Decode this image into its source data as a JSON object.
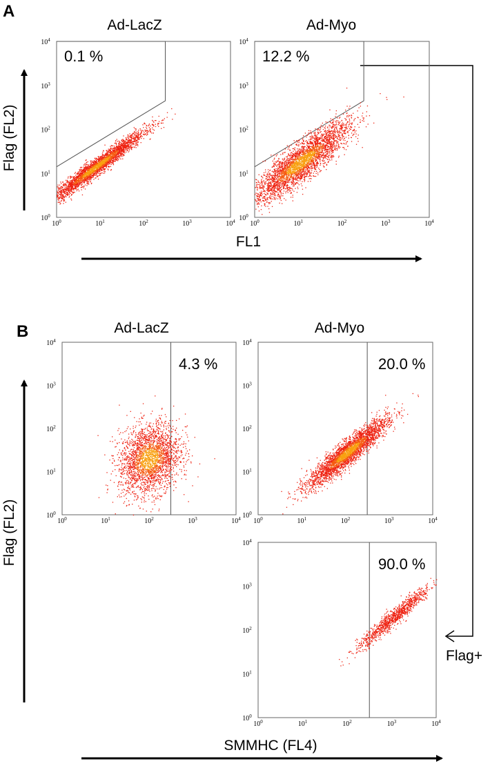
{
  "panels": {
    "a": "A",
    "b": "B"
  },
  "labels": {
    "ylabel_a": "Flag (FL2)",
    "xlabel_a": "FL1",
    "ylabel_b": "Flag (FL2)",
    "xlabel_b": "SMMHC (FL4)",
    "flag_plus": "Flag+"
  },
  "colors": {
    "dots": "#ee2211",
    "core": "#f8a010",
    "gate": "#555555"
  },
  "chart_data": [
    {
      "id": "a-lacz",
      "type": "scatter",
      "title": "Ad-LacZ",
      "gate_pct": "0.1 %",
      "x_ticks": [
        "10",
        "10",
        "10",
        "10",
        "10"
      ],
      "x_exps": [
        "0",
        "1",
        "2",
        "3",
        "4"
      ],
      "y_ticks": [
        "10",
        "10",
        "10",
        "10",
        "10"
      ],
      "y_exps": [
        "0",
        "1",
        "2",
        "3",
        "4"
      ],
      "xlim_log10": [
        0,
        4
      ],
      "ylim_log10": [
        0,
        4
      ],
      "gate": {
        "kind": "polygon",
        "points_log10": [
          [
            0,
            1.15
          ],
          [
            2.5,
            2.65
          ],
          [
            2.5,
            4
          ],
          [
            0,
            4
          ]
        ]
      },
      "population": {
        "center_log10": [
          0.9,
          1.15
        ],
        "spread_log10": [
          0.55,
          0.1
        ],
        "slope": 0.72,
        "count": 3200,
        "core": true
      }
    },
    {
      "id": "a-myo",
      "type": "scatter",
      "title": "Ad-Myo",
      "gate_pct": "12.2 %",
      "x_ticks": [
        "10",
        "10",
        "10",
        "10",
        "10"
      ],
      "x_exps": [
        "0",
        "1",
        "2",
        "3",
        "4"
      ],
      "y_ticks": [
        "10",
        "10",
        "10",
        "10",
        "10"
      ],
      "y_exps": [
        "0",
        "1",
        "2",
        "3",
        "4"
      ],
      "xlim_log10": [
        0,
        4
      ],
      "ylim_log10": [
        0,
        4
      ],
      "gate": {
        "kind": "polygon",
        "points_log10": [
          [
            0,
            1.15
          ],
          [
            2.5,
            2.65
          ],
          [
            2.5,
            4
          ],
          [
            0,
            4
          ]
        ]
      },
      "population": {
        "center_log10": [
          1.05,
          1.25
        ],
        "spread_log10": [
          0.55,
          0.22
        ],
        "slope": 0.72,
        "count": 3600,
        "core": true
      }
    },
    {
      "id": "b-lacz",
      "type": "scatter",
      "title": "Ad-LacZ",
      "gate_pct": "4.3 %",
      "x_ticks": [
        "10",
        "10",
        "10",
        "10",
        "10"
      ],
      "x_exps": [
        "0",
        "1",
        "2",
        "3",
        "4"
      ],
      "y_ticks": [
        "10",
        "10",
        "10",
        "10",
        "10"
      ],
      "y_exps": [
        "0",
        "1",
        "2",
        "3",
        "4"
      ],
      "xlim_log10": [
        0,
        4
      ],
      "ylim_log10": [
        0,
        4
      ],
      "gate": {
        "kind": "vertical",
        "x_log10": 2.5
      },
      "population": {
        "center_log10": [
          2.0,
          1.3
        ],
        "spread_log10": [
          0.35,
          0.4
        ],
        "slope": 0.25,
        "count": 2600,
        "core": true
      }
    },
    {
      "id": "b-myo",
      "type": "scatter",
      "title": "Ad-Myo",
      "gate_pct": "20.0 %",
      "x_ticks": [
        "10",
        "10",
        "10",
        "10",
        "10"
      ],
      "x_exps": [
        "0",
        "1",
        "2",
        "3",
        "4"
      ],
      "y_ticks": [
        "10",
        "10",
        "10",
        "10",
        "10"
      ],
      "y_exps": [
        "0",
        "1",
        "2",
        "3",
        "4"
      ],
      "xlim_log10": [
        0,
        4
      ],
      "ylim_log10": [
        0,
        4
      ],
      "gate": {
        "kind": "vertical",
        "x_log10": 2.5
      },
      "population": {
        "center_log10": [
          2.05,
          1.45
        ],
        "spread_log10": [
          0.45,
          0.15
        ],
        "slope": 0.8,
        "count": 3200,
        "core": true
      }
    },
    {
      "id": "b-flag",
      "type": "scatter",
      "title": "",
      "gate_pct": "90.0 %",
      "x_ticks": [
        "10",
        "10",
        "10",
        "10",
        "10"
      ],
      "x_exps": [
        "0",
        "1",
        "2",
        "3",
        "4"
      ],
      "y_ticks": [
        "10",
        "10",
        "10",
        "10",
        "10"
      ],
      "y_exps": [
        "0",
        "1",
        "2",
        "3",
        "4"
      ],
      "xlim_log10": [
        0,
        4
      ],
      "ylim_log10": [
        0,
        4
      ],
      "gate": {
        "kind": "vertical",
        "x_log10": 2.5
      },
      "population": {
        "center_log10": [
          3.05,
          2.3
        ],
        "spread_log10": [
          0.42,
          0.1
        ],
        "slope": 0.85,
        "count": 1100,
        "core": false
      }
    }
  ]
}
